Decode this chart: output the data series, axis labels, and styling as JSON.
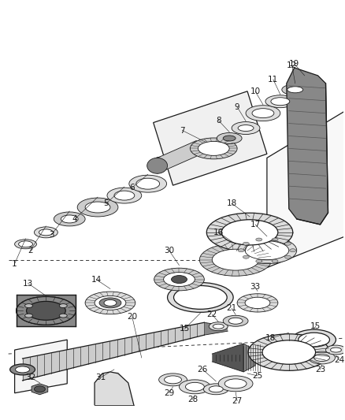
{
  "bg_color": "#ffffff",
  "line_color": "#1a1a1a",
  "gray_dark": "#555555",
  "gray_med": "#888888",
  "gray_light": "#bbbbbb",
  "gray_lighter": "#dddddd",
  "gray_fill": "#cccccc",
  "white": "#ffffff"
}
